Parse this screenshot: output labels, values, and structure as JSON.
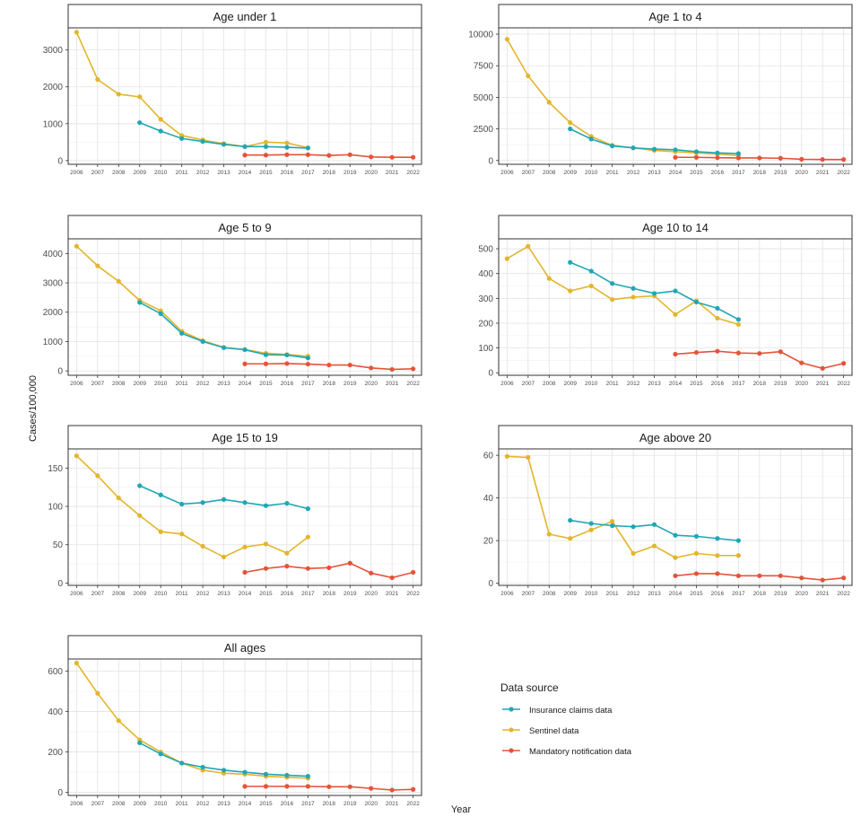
{
  "xlabel": "Year",
  "ylabel": "Cases/100,000",
  "legend": {
    "title": "Data source",
    "position": "bottom-right",
    "entries": [
      {
        "key": "insurance",
        "label": "Insurance claims data",
        "color": "#1fa7b5"
      },
      {
        "key": "sentinel",
        "label": "Sentinel data",
        "color": "#e3b52b"
      },
      {
        "key": "mandatory",
        "label": "Mandatory notification data",
        "color": "#e5533a"
      }
    ]
  },
  "chart_data": [
    {
      "type": "line",
      "title": "Age under 1",
      "x": [
        "2006",
        "2007",
        "2008",
        "2009",
        "2010",
        "2011",
        "2012",
        "2013",
        "2014",
        "2015",
        "2016",
        "2017",
        "2018",
        "2019",
        "2020",
        "2021",
        "2022"
      ],
      "ylim": [
        -100,
        3600
      ],
      "yticks": [
        0,
        1000,
        2000,
        3000
      ],
      "grid": true,
      "series": [
        {
          "name": "Sentinel data",
          "x": [
            2006,
            2007,
            2008,
            2009,
            2010,
            2011,
            2012,
            2013,
            2014,
            2015,
            2016,
            2017
          ],
          "values": [
            3480,
            2200,
            1800,
            1730,
            1120,
            680,
            560,
            460,
            380,
            500,
            480,
            350
          ]
        },
        {
          "name": "Insurance claims data",
          "x": [
            2009,
            2010,
            2011,
            2012,
            2013,
            2014,
            2015,
            2016,
            2017
          ],
          "values": [
            1030,
            800,
            600,
            520,
            440,
            380,
            380,
            360,
            340
          ]
        },
        {
          "name": "Mandatory notification data",
          "x": [
            2014,
            2015,
            2016,
            2017,
            2018,
            2019,
            2020,
            2021,
            2022
          ],
          "values": [
            150,
            150,
            160,
            160,
            140,
            160,
            100,
            90,
            90
          ]
        }
      ]
    },
    {
      "type": "line",
      "title": "Age 1 to 4",
      "x": [
        "2006",
        "2007",
        "2008",
        "2009",
        "2010",
        "2011",
        "2012",
        "2013",
        "2014",
        "2015",
        "2016",
        "2017",
        "2018",
        "2019",
        "2020",
        "2021",
        "2022"
      ],
      "ylim": [
        -300,
        10500
      ],
      "yticks": [
        0,
        2500,
        5000,
        7500,
        10000
      ],
      "grid": true,
      "series": [
        {
          "name": "Sentinel data",
          "x": [
            2006,
            2007,
            2008,
            2009,
            2010,
            2011,
            2012,
            2013,
            2014,
            2015,
            2016,
            2017
          ],
          "values": [
            9600,
            6700,
            4600,
            3000,
            1900,
            1200,
            1000,
            800,
            700,
            600,
            500,
            400
          ]
        },
        {
          "name": "Insurance claims data",
          "x": [
            2009,
            2010,
            2011,
            2012,
            2013,
            2014,
            2015,
            2016,
            2017
          ],
          "values": [
            2500,
            1700,
            1150,
            1000,
            900,
            850,
            700,
            600,
            550
          ]
        },
        {
          "name": "Mandatory notification data",
          "x": [
            2014,
            2015,
            2016,
            2017,
            2018,
            2019,
            2020,
            2021,
            2022
          ],
          "values": [
            250,
            250,
            220,
            200,
            200,
            180,
            100,
            80,
            80
          ]
        }
      ]
    },
    {
      "type": "line",
      "title": "Age 5 to 9",
      "x": [
        "2006",
        "2007",
        "2008",
        "2009",
        "2010",
        "2011",
        "2012",
        "2013",
        "2014",
        "2015",
        "2016",
        "2017",
        "2018",
        "2019",
        "2020",
        "2021",
        "2022"
      ],
      "ylim": [
        -150,
        4500
      ],
      "yticks": [
        0,
        1000,
        2000,
        3000,
        4000
      ],
      "grid": true,
      "series": [
        {
          "name": "Sentinel data",
          "x": [
            2006,
            2007,
            2008,
            2009,
            2010,
            2011,
            2012,
            2013,
            2014,
            2015,
            2016,
            2017
          ],
          "values": [
            4250,
            3580,
            3050,
            2400,
            2050,
            1350,
            1030,
            800,
            730,
            600,
            560,
            500
          ]
        },
        {
          "name": "Insurance claims data",
          "x": [
            2009,
            2010,
            2011,
            2012,
            2013,
            2014,
            2015,
            2016,
            2017
          ],
          "values": [
            2330,
            1950,
            1280,
            1000,
            790,
            720,
            550,
            540,
            440
          ]
        },
        {
          "name": "Mandatory notification data",
          "x": [
            2014,
            2015,
            2016,
            2017,
            2018,
            2019,
            2020,
            2021,
            2022
          ],
          "values": [
            240,
            240,
            250,
            230,
            200,
            200,
            100,
            50,
            70
          ]
        }
      ]
    },
    {
      "type": "line",
      "title": "Age 10 to 14",
      "x": [
        "2006",
        "2007",
        "2008",
        "2009",
        "2010",
        "2011",
        "2012",
        "2013",
        "2014",
        "2015",
        "2016",
        "2017",
        "2018",
        "2019",
        "2020",
        "2021",
        "2022"
      ],
      "ylim": [
        -10,
        540
      ],
      "yticks": [
        0,
        100,
        200,
        300,
        400,
        500
      ],
      "grid": true,
      "series": [
        {
          "name": "Sentinel data",
          "x": [
            2006,
            2007,
            2008,
            2009,
            2010,
            2011,
            2012,
            2013,
            2014,
            2015,
            2016,
            2017
          ],
          "values": [
            460,
            510,
            380,
            330,
            350,
            295,
            305,
            310,
            235,
            290,
            220,
            195
          ]
        },
        {
          "name": "Insurance claims data",
          "x": [
            2009,
            2010,
            2011,
            2012,
            2013,
            2014,
            2015,
            2016,
            2017
          ],
          "values": [
            445,
            410,
            360,
            340,
            320,
            330,
            285,
            260,
            215
          ]
        },
        {
          "name": "Mandatory notification data",
          "x": [
            2014,
            2015,
            2016,
            2017,
            2018,
            2019,
            2020,
            2021,
            2022
          ],
          "values": [
            75,
            82,
            87,
            80,
            78,
            85,
            40,
            18,
            38
          ]
        }
      ]
    },
    {
      "type": "line",
      "title": "Age 15 to 19",
      "x": [
        "2006",
        "2007",
        "2008",
        "2009",
        "2010",
        "2011",
        "2012",
        "2013",
        "2014",
        "2015",
        "2016",
        "2017",
        "2018",
        "2019",
        "2020",
        "2021",
        "2022"
      ],
      "ylim": [
        -3,
        175
      ],
      "yticks": [
        0,
        50,
        100,
        150
      ],
      "grid": true,
      "series": [
        {
          "name": "Sentinel data",
          "x": [
            2006,
            2007,
            2008,
            2009,
            2010,
            2011,
            2012,
            2013,
            2014,
            2015,
            2016,
            2017
          ],
          "values": [
            166,
            140,
            111,
            88,
            67,
            64,
            48,
            34,
            47,
            51,
            39,
            60
          ]
        },
        {
          "name": "Insurance claims data",
          "x": [
            2009,
            2010,
            2011,
            2012,
            2013,
            2014,
            2015,
            2016,
            2017
          ],
          "values": [
            127,
            115,
            103,
            105,
            109,
            105,
            101,
            104,
            97
          ]
        },
        {
          "name": "Mandatory notification data",
          "x": [
            2014,
            2015,
            2016,
            2017,
            2018,
            2019,
            2020,
            2021,
            2022
          ],
          "values": [
            14,
            19,
            22,
            19,
            20,
            26,
            13,
            7,
            14
          ]
        }
      ]
    },
    {
      "type": "line",
      "title": "Age above 20",
      "x": [
        "2006",
        "2007",
        "2008",
        "2009",
        "2010",
        "2011",
        "2012",
        "2013",
        "2014",
        "2015",
        "2016",
        "2017",
        "2018",
        "2019",
        "2020",
        "2021",
        "2022"
      ],
      "ylim": [
        -1,
        63
      ],
      "yticks": [
        0,
        20,
        40,
        60
      ],
      "grid": true,
      "series": [
        {
          "name": "Sentinel data",
          "x": [
            2006,
            2007,
            2008,
            2009,
            2010,
            2011,
            2012,
            2013,
            2014,
            2015,
            2016,
            2017
          ],
          "values": [
            59.5,
            59,
            23,
            21,
            25,
            29,
            14,
            17.5,
            12,
            14,
            13,
            13
          ]
        },
        {
          "name": "Insurance claims data",
          "x": [
            2009,
            2010,
            2011,
            2012,
            2013,
            2014,
            2015,
            2016,
            2017
          ],
          "values": [
            29.5,
            28,
            27,
            26.5,
            27.5,
            22.5,
            22,
            21,
            20
          ]
        },
        {
          "name": "Mandatory notification data",
          "x": [
            2014,
            2015,
            2016,
            2017,
            2018,
            2019,
            2020,
            2021,
            2022
          ],
          "values": [
            3.5,
            4.5,
            4.5,
            3.5,
            3.5,
            3.5,
            2.5,
            1.5,
            2.5
          ]
        }
      ]
    },
    {
      "type": "line",
      "title": "All ages",
      "x": [
        "2006",
        "2007",
        "2008",
        "2009",
        "2010",
        "2011",
        "2012",
        "2013",
        "2014",
        "2015",
        "2016",
        "2017",
        "2018",
        "2019",
        "2020",
        "2021",
        "2022"
      ],
      "ylim": [
        -15,
        660
      ],
      "yticks": [
        0,
        200,
        400,
        600
      ],
      "grid": true,
      "series": [
        {
          "name": "Sentinel data",
          "x": [
            2006,
            2007,
            2008,
            2009,
            2010,
            2011,
            2012,
            2013,
            2014,
            2015,
            2016,
            2017
          ],
          "values": [
            640,
            490,
            355,
            260,
            200,
            145,
            110,
            95,
            90,
            80,
            75,
            70
          ]
        },
        {
          "name": "Insurance claims data",
          "x": [
            2009,
            2010,
            2011,
            2012,
            2013,
            2014,
            2015,
            2016,
            2017
          ],
          "values": [
            245,
            190,
            145,
            125,
            110,
            100,
            90,
            85,
            80
          ]
        },
        {
          "name": "Mandatory notification data",
          "x": [
            2014,
            2015,
            2016,
            2017,
            2018,
            2019,
            2020,
            2021,
            2022
          ],
          "values": [
            30,
            30,
            30,
            30,
            28,
            28,
            20,
            12,
            15
          ]
        }
      ]
    }
  ]
}
